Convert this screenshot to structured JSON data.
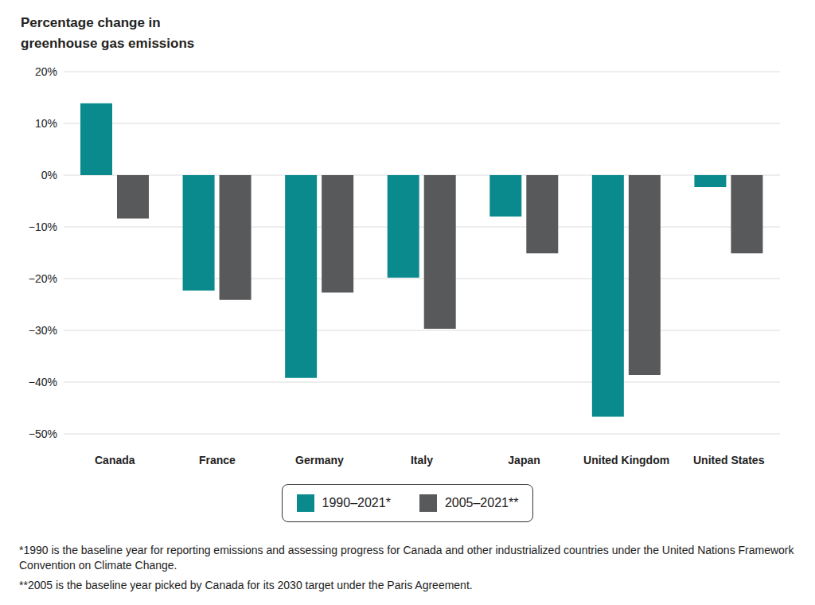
{
  "chart_data": {
    "type": "bar",
    "title": "Percentage change in greenhouse gas emissions",
    "categories": [
      "Canada",
      "France",
      "Germany",
      "Italy",
      "Japan",
      "United Kingdom",
      "United States"
    ],
    "series": [
      {
        "name": "1990–2021*",
        "color": "#0a8a8c",
        "values": [
          13.9,
          -22.3,
          -39.2,
          -19.8,
          -8.0,
          -46.7,
          -2.3
        ]
      },
      {
        "name": "2005–2021**",
        "color": "#58595b",
        "values": [
          -8.4,
          -24.1,
          -22.7,
          -29.7,
          -15.1,
          -38.6,
          -15.1
        ]
      }
    ],
    "ylim": [
      -50,
      20
    ],
    "yticks": [
      {
        "value": -50,
        "label": "−50%"
      },
      {
        "value": -40,
        "label": "−40%"
      },
      {
        "value": -30,
        "label": "−30%"
      },
      {
        "value": -20,
        "label": "−20%"
      },
      {
        "value": -10,
        "label": "−10%"
      },
      {
        "value": 0,
        "label": "0%"
      },
      {
        "value": 10,
        "label": "10%"
      },
      {
        "value": 20,
        "label": "20%"
      }
    ],
    "grid": true,
    "legend": "bottom",
    "notes": [
      "*1990 is the baseline year for reporting emissions and assessing progress for Canada and other industrialized countries under the United Nations Framework Convention on Climate Change.",
      "**2005 is the baseline year picked by Canada for its 2030 target under the Paris Agreement."
    ]
  }
}
